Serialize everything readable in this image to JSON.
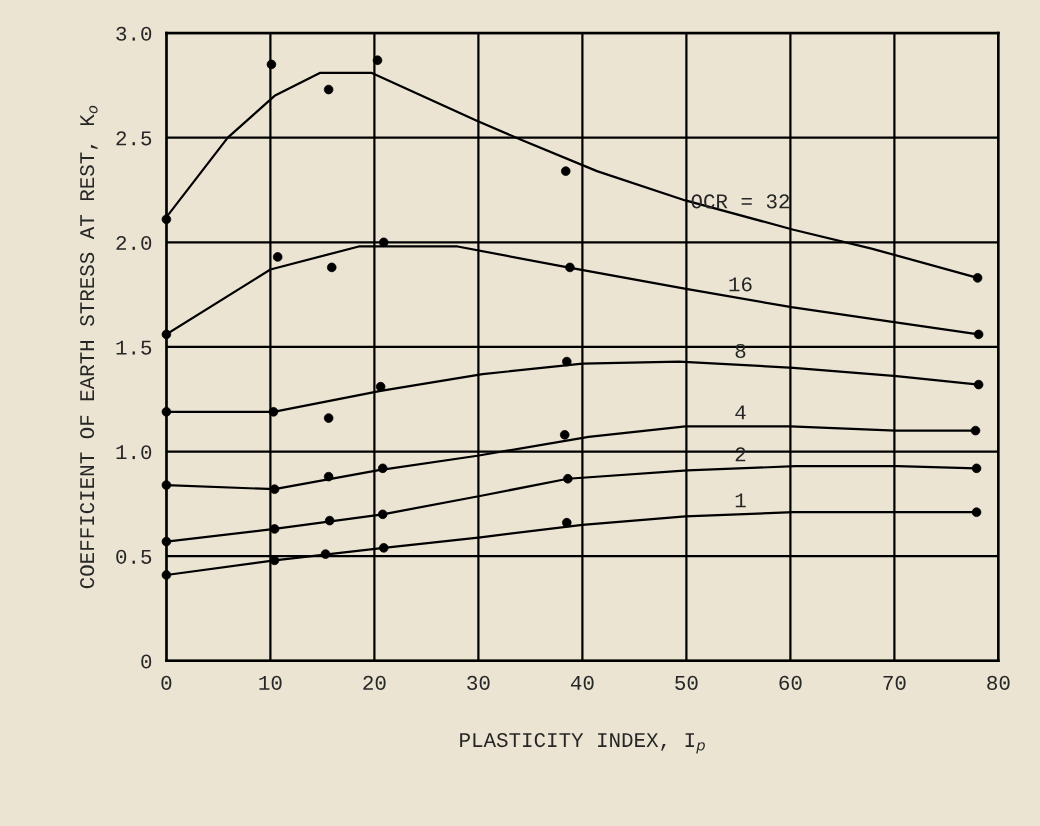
{
  "chart_data": {
    "type": "line",
    "xlabel": "PLASTICITY INDEX, I$_{p}$",
    "ylabel": "COEFFICIENT OF EARTH STRESS AT REST, K$_{o}$",
    "xlim": [
      0,
      80
    ],
    "xticks": [
      0,
      10,
      20,
      30,
      40,
      50,
      60,
      70,
      80
    ],
    "ylim": [
      0,
      3.0
    ],
    "yticks": [
      0,
      {
        "value": 0.5,
        "label": "0.5"
      },
      {
        "value": 1.0,
        "label": "1.0"
      },
      {
        "value": 1.5,
        "label": "1.5"
      },
      {
        "value": 2.0,
        "label": "2.0"
      },
      {
        "value": 2.5,
        "label": "2.5"
      },
      {
        "value": 3.0,
        "label": "3.0"
      }
    ],
    "grid": true,
    "legend": false,
    "series": [
      {
        "name": "OCR = 32",
        "color": "#000000",
        "marker": "none",
        "x": [
          0,
          5.9,
          10.4,
          14.8,
          19.7,
          29.9,
          34.1,
          41.4,
          49.9,
          60.3,
          67.8,
          78
        ],
        "values": [
          2.12,
          2.5,
          2.7,
          2.81,
          2.81,
          2.58,
          2.49,
          2.34,
          2.2,
          2.06,
          1.97,
          1.83
        ]
      },
      {
        "name": "16",
        "color": "#000000",
        "marker": "none",
        "x": [
          0,
          10,
          18.5,
          28,
          38.6,
          49.7,
          60.1,
          69.8,
          78.1
        ],
        "values": [
          1.56,
          1.87,
          1.98,
          1.98,
          1.88,
          1.78,
          1.69,
          1.62,
          1.56
        ]
      },
      {
        "name": "8",
        "color": "#000000",
        "marker": "none",
        "x": [
          0,
          10.3,
          20.6,
          30.4,
          40,
          49.3,
          60.3,
          70.2,
          78.1
        ],
        "values": [
          1.19,
          1.19,
          1.29,
          1.37,
          1.42,
          1.43,
          1.4,
          1.36,
          1.32
        ]
      },
      {
        "name": "4",
        "color": "#000000",
        "marker": "none",
        "x": [
          0,
          10.4,
          20.3,
          29.9,
          40.6,
          49.9,
          60,
          70.1,
          77.8
        ],
        "values": [
          0.84,
          0.82,
          0.91,
          0.98,
          1.07,
          1.12,
          1.12,
          1.1,
          1.1
        ]
      },
      {
        "name": "2",
        "color": "#000000",
        "marker": "none",
        "x": [
          0,
          10.4,
          20.8,
          30.4,
          38.6,
          50.1,
          60.5,
          70.3,
          77.9
        ],
        "values": [
          0.57,
          0.63,
          0.7,
          0.79,
          0.87,
          0.91,
          0.93,
          0.93,
          0.92
        ]
      },
      {
        "name": "1",
        "color": "#000000",
        "marker": "none",
        "x": [
          0,
          10.4,
          20.9,
          30.2,
          40,
          49.9,
          60.3,
          70.1,
          77.9
        ],
        "values": [
          0.41,
          0.48,
          0.54,
          0.59,
          0.65,
          0.69,
          0.71,
          0.71,
          0.71
        ]
      },
      {
        "type": "scatter",
        "color": "#000000",
        "marker": "circle",
        "x": [
          0,
          10.1,
          15.6,
          20.3,
          38.4,
          78
        ],
        "values": [
          2.11,
          2.85,
          2.73,
          2.87,
          2.34,
          1.83
        ]
      },
      {
        "type": "scatter",
        "color": "#000000",
        "marker": "circle",
        "x": [
          0,
          10.7,
          15.9,
          20.9,
          38.8,
          78.1
        ],
        "values": [
          1.56,
          1.93,
          1.88,
          2.0,
          1.88,
          1.56
        ]
      },
      {
        "type": "scatter",
        "color": "#000000",
        "marker": "circle",
        "x": [
          0,
          10.3,
          15.6,
          20.6,
          38.5,
          78.1
        ],
        "values": [
          1.19,
          1.19,
          1.16,
          1.31,
          1.43,
          1.32
        ]
      },
      {
        "type": "scatter",
        "color": "#000000",
        "marker": "circle",
        "x": [
          0,
          10.4,
          15.6,
          20.8,
          38.3,
          77.8
        ],
        "values": [
          0.84,
          0.82,
          0.88,
          0.92,
          1.08,
          1.1
        ]
      },
      {
        "type": "scatter",
        "color": "#000000",
        "marker": "circle",
        "x": [
          0,
          10.4,
          15.7,
          20.8,
          38.6,
          77.9
        ],
        "values": [
          0.57,
          0.63,
          0.67,
          0.7,
          0.87,
          0.92
        ]
      },
      {
        "type": "scatter",
        "color": "#000000",
        "marker": "circle",
        "x": [
          0,
          10.4,
          15.3,
          20.9,
          38.5,
          77.9
        ],
        "values": [
          0.41,
          0.48,
          0.51,
          0.54,
          0.66,
          0.71
        ]
      }
    ]
  }
}
